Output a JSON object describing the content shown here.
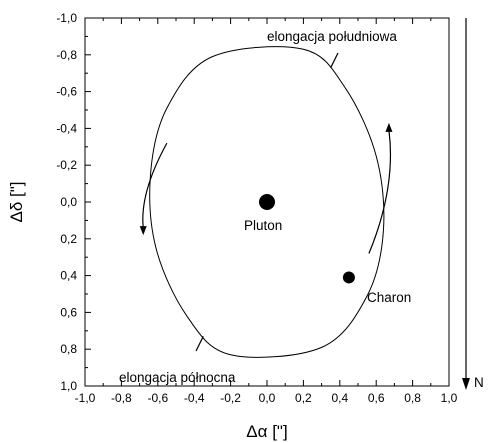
{
  "chart_data": {
    "type": "scatter",
    "xlabel": "Δα [\"]",
    "ylabel": "Δδ [\"]",
    "xlim": [
      -1.0,
      1.0
    ],
    "ylim": [
      -1.0,
      1.0
    ],
    "y_inverted": true,
    "grid": false,
    "x_ticks": [
      "-1,0",
      "-0,8",
      "-0,6",
      "-0,4",
      "-0,2",
      "0,0",
      "0,2",
      "0,4",
      "0,6",
      "0,8",
      "1,0"
    ],
    "y_ticks": [
      "-1,0",
      "-0,8",
      "-0,6",
      "-0,4",
      "-0,2",
      "0,0",
      "0,2",
      "0,4",
      "0,6",
      "0,8",
      "1,0"
    ],
    "orbit": [
      {
        "x": 0.2,
        "y": -0.83
      },
      {
        "x": 0.43,
        "y": -0.62
      },
      {
        "x": 0.6,
        "y": -0.25
      },
      {
        "x": 0.64,
        "y": 0.15
      },
      {
        "x": 0.55,
        "y": 0.51
      },
      {
        "x": 0.3,
        "y": 0.79
      },
      {
        "x": -0.2,
        "y": 0.83
      },
      {
        "x": -0.44,
        "y": 0.62
      },
      {
        "x": -0.61,
        "y": 0.25
      },
      {
        "x": -0.64,
        "y": -0.15
      },
      {
        "x": -0.55,
        "y": -0.51
      },
      {
        "x": -0.3,
        "y": -0.79
      }
    ],
    "bodies": [
      {
        "name": "Pluton",
        "x": 0.0,
        "y": 0.0
      },
      {
        "name": "Charon",
        "x": 0.45,
        "y": 0.41
      }
    ],
    "annotations": [
      {
        "text": "elongacja południowa",
        "x": 0.37,
        "y": -0.77
      },
      {
        "text": "elongacja północna",
        "x": -0.37,
        "y": 0.79
      }
    ],
    "north_label": "N"
  }
}
